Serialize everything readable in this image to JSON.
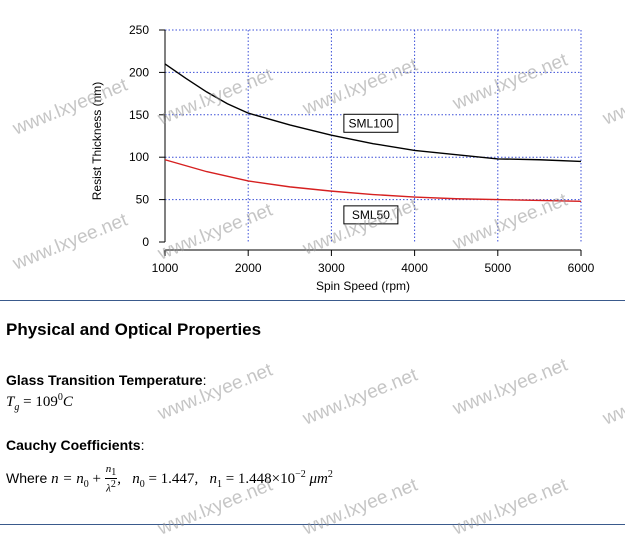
{
  "chart_data": {
    "type": "line",
    "xlabel": "Spin Speed (rpm)",
    "ylabel": "Resist Thickness (nm)",
    "xlim": [
      1000,
      6000
    ],
    "ylim": [
      0,
      250
    ],
    "xticks": [
      1000,
      2000,
      3000,
      4000,
      5000,
      6000
    ],
    "yticks": [
      0,
      50,
      100,
      150,
      200,
      250
    ],
    "grid": true,
    "series": [
      {
        "name": "SML100",
        "color": "#000000",
        "x": [
          1000,
          1250,
          1500,
          1750,
          2000,
          2500,
          3000,
          3500,
          4000,
          4500,
          5000,
          5500,
          6000
        ],
        "values": [
          210,
          193,
          177,
          163,
          152,
          138,
          126,
          116,
          108,
          103,
          98,
          97,
          95
        ]
      },
      {
        "name": "SML50",
        "color": "#d62020",
        "x": [
          1000,
          1500,
          2000,
          2500,
          3000,
          3500,
          4000,
          4500,
          5000,
          5500,
          6000
        ],
        "values": [
          97,
          83,
          72,
          65,
          60,
          56,
          53,
          51,
          50,
          49,
          48
        ]
      }
    ]
  },
  "section": {
    "title": "Physical and Optical Properties"
  },
  "glass": {
    "label": "Glass Transition Temperature",
    "colon": ":",
    "symbol": "T",
    "subscript": "g",
    "equals": " = ",
    "value": "109",
    "sup": "0",
    "unit": "C"
  },
  "cauchy": {
    "label": "Cauchy Coefficients",
    "colon": ":",
    "where": "Where",
    "n_eq": "n = n",
    "n0_sub": "0",
    "plus": " + ",
    "frac_num": "n",
    "frac_num_sub": "1",
    "frac_den": "λ",
    "frac_den_sup": "2",
    "sep1": ",",
    "n0_lhs": "n",
    "n0_lhs_sub": "0",
    "n0_value": " = 1.447",
    "sep2": ",",
    "n1_lhs": "n",
    "n1_lhs_sub": "1",
    "n1_value": " = 1.448×10",
    "n1_exp": "−2",
    "n1_unit": " μm",
    "n1_unit_sup": "2"
  },
  "watermark": {
    "text": "www.lxyee.net"
  }
}
